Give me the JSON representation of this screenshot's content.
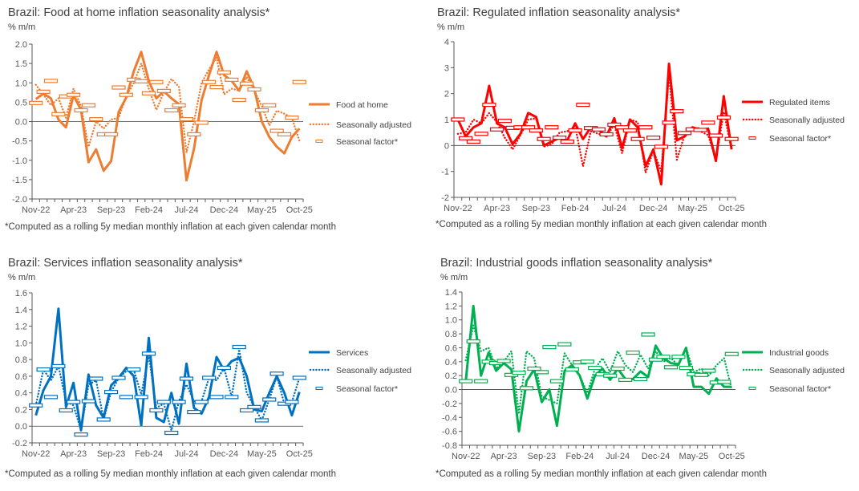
{
  "footnote": "*Computed as a rolling 5y median monthly inflation at each given calendar month",
  "unit_label": "% m/m",
  "chart_data": [
    {
      "type": "line",
      "title": "Brazil: Food at home inflation seasonality analysis*",
      "ylabel": "% m/m",
      "color": "#ED7D31",
      "ylim": [
        -2.0,
        2.0
      ],
      "ystep": 0.5,
      "ydecimals": 1,
      "xtick_labels": [
        "Nov-22",
        "Apr-23",
        "Sep-23",
        "Feb-24",
        "Jul-24",
        "Dec-24",
        "May-25",
        "Oct-25"
      ],
      "n_months": 36,
      "legend_position": "right",
      "series": [
        {
          "name": "Food at home",
          "style": "solid",
          "values": [
            0.58,
            0.72,
            0.6,
            0.05,
            -0.15,
            0.68,
            0.3,
            -1.05,
            -0.72,
            -1.27,
            -1.02,
            0.25,
            0.62,
            1.3,
            1.8,
            1.05,
            0.6,
            0.78,
            0.6,
            0.45,
            -1.52,
            -0.7,
            0.55,
            1.2,
            1.8,
            1.2,
            1.05,
            0.8,
            1.3,
            0.85,
            0.0,
            -0.4,
            -0.65,
            -0.82,
            -0.4,
            -0.18
          ]
        },
        {
          "name": "Seasonally adjusted",
          "style": "dotted",
          "values": [
            0.95,
            0.7,
            0.42,
            0.6,
            0.1,
            0.85,
            0.4,
            -0.65,
            0.0,
            -0.18,
            0.05,
            0.1,
            0.65,
            1.0,
            1.5,
            0.85,
            0.3,
            0.75,
            1.1,
            0.9,
            -0.8,
            0.0,
            1.0,
            1.35,
            1.65,
            0.7,
            0.85,
            0.8,
            1.15,
            0.8,
            0.4,
            -0.1,
            0.28,
            0.2,
            0.1,
            -0.5
          ]
        },
        {
          "name": "Seasonal factor*",
          "style": "marker",
          "values": [
            0.48,
            0.77,
            1.05,
            0.19,
            0.65,
            0.69,
            0.29,
            0.42,
            0.06,
            -0.33,
            -0.33,
            0.88,
            0.69,
            1.08,
            1.04,
            0.73,
            1.02,
            0.79,
            0.29,
            0.42,
            0.06,
            -0.33,
            -0.03,
            1.02,
            0.89,
            1.27,
            1.08,
            0.56,
            0.98,
            0.83,
            0.29,
            0.42,
            -0.24,
            -0.33,
            0.1,
            1.02
          ]
        }
      ]
    },
    {
      "type": "line",
      "title": "Brazil: Regulated inflation seasonality analysis*",
      "ylabel": "% m/m",
      "color": "#FF0000",
      "ylim": [
        -2,
        4
      ],
      "ystep": 1,
      "ydecimals": 0,
      "xtick_labels": [
        "Nov-22",
        "Apr-23",
        "Sep-23",
        "Feb-24",
        "Jul-24",
        "Dec-24",
        "May-25",
        "Oct-25"
      ],
      "n_months": 36,
      "legend_position": "right",
      "series": [
        {
          "name": "Regulated items",
          "style": "solid",
          "values": [
            1.0,
            0.35,
            0.7,
            0.85,
            2.3,
            0.85,
            0.7,
            0.05,
            0.45,
            1.25,
            1.1,
            0.0,
            0.15,
            0.3,
            0.2,
            0.85,
            0.25,
            0.7,
            0.6,
            0.35,
            1.05,
            -0.1,
            1.0,
            0.7,
            -0.8,
            -0.15,
            -1.5,
            3.15,
            0.2,
            0.35,
            0.7,
            0.6,
            0.65,
            -0.6,
            1.9,
            -0.15
          ]
        },
        {
          "name": "Seasonally adjusted",
          "style": "dotted",
          "values": [
            0.45,
            0.5,
            1.0,
            0.85,
            1.25,
            0.9,
            0.3,
            -0.15,
            0.4,
            1.0,
            1.05,
            -0.05,
            0.05,
            0.5,
            0.55,
            0.75,
            -0.8,
            0.55,
            0.45,
            0.35,
            0.8,
            -0.3,
            1.0,
            0.9,
            -1.05,
            -0.2,
            -1.0,
            2.75,
            -0.55,
            0.4,
            0.7,
            0.55,
            0.4,
            -0.55,
            1.3,
            -0.15
          ]
        },
        {
          "name": "Seasonal factor*",
          "style": "marker",
          "values": [
            1.0,
            0.28,
            0.15,
            0.45,
            1.57,
            0.62,
            0.95,
            0.68,
            0.7,
            0.7,
            0.58,
            0.25,
            0.7,
            0.3,
            0.15,
            0.58,
            1.57,
            0.67,
            0.62,
            0.43,
            0.8,
            0.7,
            0.58,
            0.25,
            0.7,
            0.3,
            -0.05,
            0.88,
            1.32,
            0.48,
            0.62,
            0.6,
            0.88,
            0.38,
            1.08,
            0.25
          ]
        }
      ]
    },
    {
      "type": "line",
      "title": "Brazil: Services inflation seasonality analysis*",
      "ylabel": "% m/m",
      "color": "#0070C0",
      "ylim": [
        -0.2,
        1.6
      ],
      "ystep": 0.2,
      "ydecimals": 1,
      "xtick_labels": [
        "Nov-22",
        "Apr-23",
        "Sep-23",
        "Feb-24",
        "Jul-24",
        "Dec-24",
        "May-25",
        "Oct-25"
      ],
      "n_months": 36,
      "legend_position": "right",
      "series": [
        {
          "name": "Services",
          "style": "solid",
          "values": [
            0.13,
            0.43,
            0.6,
            1.41,
            0.23,
            0.52,
            -0.05,
            0.62,
            0.25,
            0.1,
            0.49,
            0.58,
            0.7,
            0.6,
            0.01,
            1.06,
            0.1,
            0.05,
            0.4,
            0.03,
            0.75,
            0.22,
            0.15,
            0.35,
            0.83,
            0.67,
            0.78,
            0.82,
            0.6,
            0.2,
            0.18,
            0.4,
            0.6,
            0.4,
            0.13,
            0.41
          ]
        },
        {
          "name": "Seasonally adjusted",
          "style": "dotted",
          "values": [
            0.25,
            0.68,
            0.55,
            0.72,
            0.3,
            0.25,
            -0.05,
            0.5,
            0.55,
            0.08,
            0.41,
            0.58,
            0.66,
            0.68,
            0.38,
            0.85,
            0.22,
            0.27,
            -0.05,
            0.3,
            0.5,
            0.3,
            0.3,
            0.58,
            0.55,
            0.7,
            0.35,
            0.92,
            0.4,
            0.23,
            0.07,
            0.32,
            0.6,
            0.27,
            0.29,
            0.58
          ]
        },
        {
          "name": "Seasonal factor*",
          "style": "marker",
          "values": [
            0.25,
            0.68,
            0.35,
            0.72,
            0.19,
            0.29,
            -0.1,
            0.3,
            0.57,
            0.08,
            0.41,
            0.58,
            0.35,
            0.68,
            0.35,
            0.87,
            0.19,
            0.29,
            -0.08,
            0.29,
            0.57,
            0.17,
            0.29,
            0.58,
            0.35,
            0.7,
            0.35,
            0.95,
            0.19,
            0.23,
            0.07,
            0.32,
            0.63,
            0.27,
            0.29,
            0.58
          ]
        }
      ]
    },
    {
      "type": "line",
      "title": "Brazil: Industrial goods inflation seasonality analysis*",
      "ylabel": "% m/m",
      "color": "#00B050",
      "ylim": [
        -0.8,
        1.4
      ],
      "ystep": 0.2,
      "ydecimals": 1,
      "xtick_labels": [
        "Nov-22",
        "Apr-23",
        "Sep-23",
        "Feb-24",
        "Jul-24",
        "Dec-24",
        "May-25",
        "Oct-25"
      ],
      "n_months": 36,
      "legend_position": "right",
      "series": [
        {
          "name": "Industrial goods",
          "style": "solid",
          "values": [
            0.12,
            1.2,
            0.2,
            0.53,
            0.27,
            0.38,
            0.29,
            -0.6,
            0.12,
            0.29,
            -0.18,
            0.0,
            -0.52,
            0.27,
            0.35,
            0.2,
            -0.13,
            0.2,
            0.3,
            0.14,
            0.3,
            0.15,
            0.15,
            0.26,
            0.18,
            0.63,
            0.45,
            0.38,
            0.36,
            0.6,
            0.04,
            0.04,
            -0.06,
            0.16,
            0.04,
            0.04
          ]
        },
        {
          "name": "Seasonally adjusted",
          "style": "dotted",
          "values": [
            0.42,
            0.92,
            0.55,
            0.6,
            0.3,
            0.4,
            0.55,
            -0.35,
            0.55,
            0.45,
            -0.1,
            -0.15,
            -0.2,
            0.52,
            0.35,
            0.2,
            -0.05,
            0.3,
            0.45,
            0.25,
            0.55,
            0.35,
            0.25,
            0.5,
            0.3,
            0.55,
            0.4,
            0.45,
            0.35,
            0.6,
            0.25,
            0.3,
            0.2,
            0.35,
            0.45,
            0.0
          ]
        },
        {
          "name": "Seasonal factor*",
          "style": "marker",
          "values": [
            0.12,
            0.69,
            0.12,
            0.4,
            0.38,
            0.41,
            0.21,
            0.24,
            0.02,
            0.3,
            0.25,
            0.61,
            0.12,
            0.65,
            0.29,
            0.39,
            0.4,
            0.31,
            0.22,
            0.2,
            0.3,
            0.14,
            0.53,
            0.15,
            0.79,
            0.43,
            0.47,
            0.32,
            0.47,
            0.31,
            0.22,
            0.21,
            0.27,
            0.1,
            0.11,
            0.51
          ]
        }
      ]
    }
  ]
}
